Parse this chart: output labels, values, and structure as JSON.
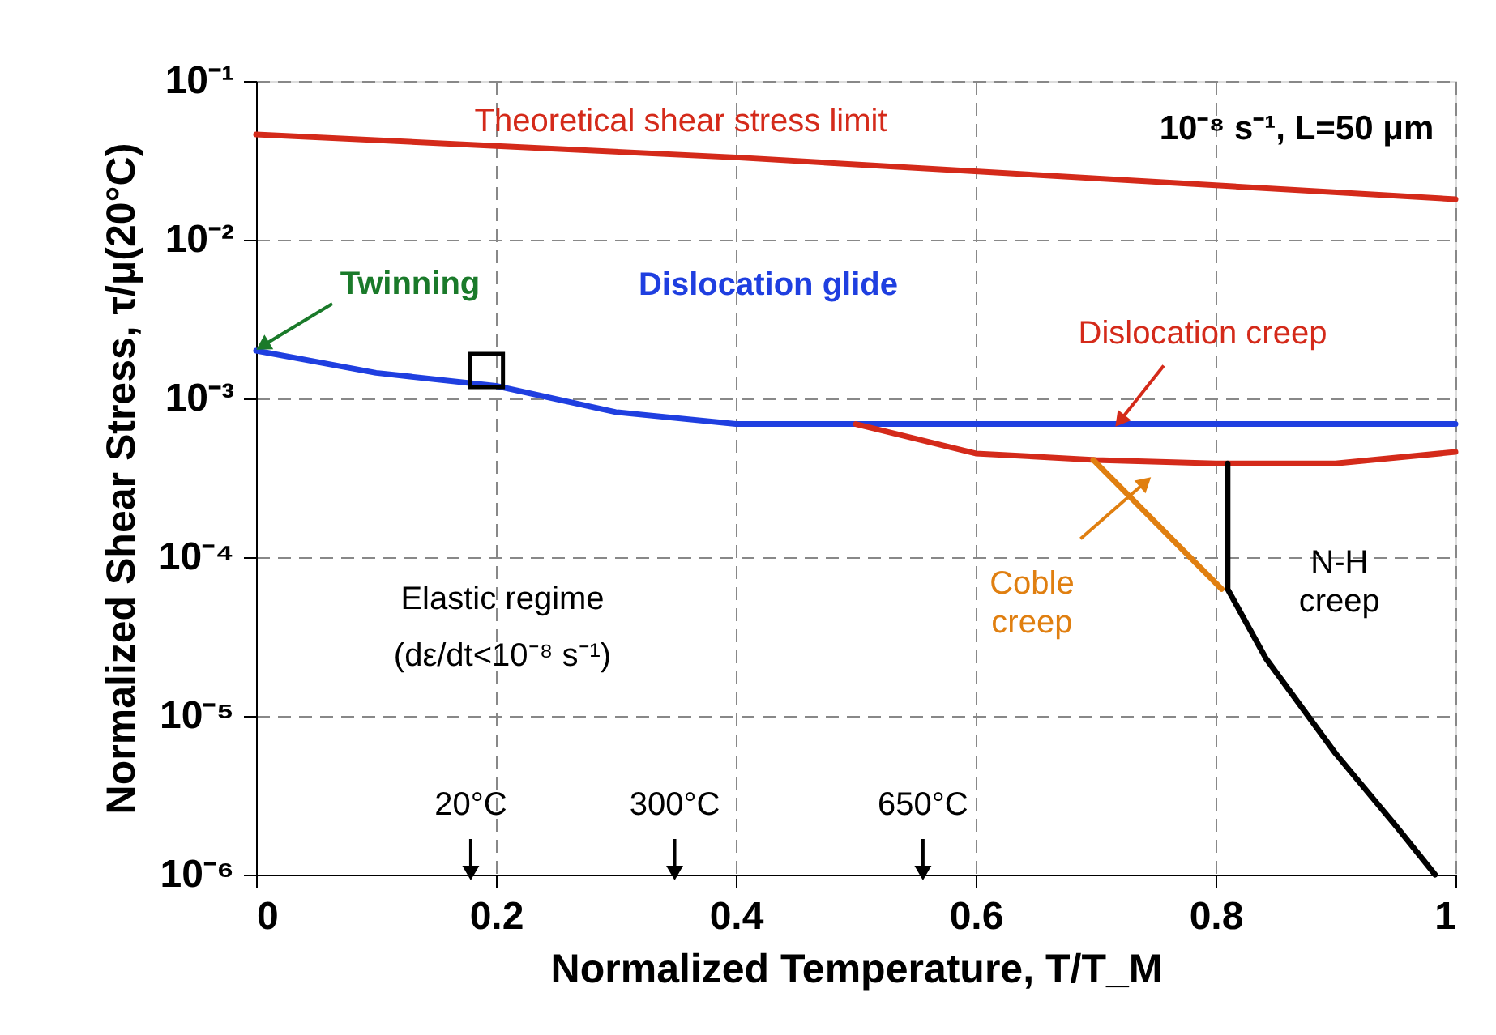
{
  "chart_data": {
    "type": "line",
    "xlabel": "Normalized Temperature, T/T_M",
    "ylabel": "Normalized Shear Stress, τ/μ(20°C)",
    "xlim": [
      0,
      1
    ],
    "xticks": [
      0,
      0.2,
      0.4,
      0.6,
      0.8,
      1
    ],
    "ylim": [
      1e-06,
      0.1
    ],
    "yticks": [
      {
        "value": 0.1,
        "label": "10⁻¹"
      },
      {
        "value": 0.01,
        "label": "10⁻²"
      },
      {
        "value": 0.001,
        "label": "10⁻³"
      },
      {
        "value": 0.0001,
        "label": "10⁻⁴"
      },
      {
        "value": 1e-05,
        "label": "10⁻⁵"
      },
      {
        "value": 1e-06,
        "label": "10⁻⁶"
      }
    ],
    "log": "y",
    "grid": true,
    "line_style": "solid",
    "series": [
      {
        "name": "Dislocation glide",
        "color": "#1f3fe0",
        "x": [
          0,
          0.1,
          0.2,
          0.3,
          0.4,
          1
        ],
        "values": [
          0.002,
          0.00145,
          0.0012,
          0.00082,
          0.00069,
          0.00069
        ]
      },
      {
        "name": "Theoretical shear stress limit",
        "color": "#d42a1a",
        "x": [
          0,
          0.4,
          1
        ],
        "values": [
          0.046,
          0.033,
          0.018
        ]
      },
      {
        "name": "Dislocation creep",
        "color": "#d42a1a",
        "x": [
          0.5,
          0.6,
          0.7,
          0.8,
          0.9,
          1
        ],
        "values": [
          0.00069,
          0.00045,
          0.00041,
          0.00039,
          0.00039,
          0.00046
        ]
      },
      {
        "name": "Coble creep",
        "color": "#e07f10",
        "x": [
          0.698,
          0.805
        ],
        "values": [
          0.00041,
          6.3e-05
        ]
      },
      {
        "name": "N-H creep",
        "color": "#000000",
        "x": [
          0.81,
          0.81,
          0.842,
          0.9,
          0.951,
          0.983
        ],
        "values": [
          0.00039,
          6.3e-05,
          2.3e-05,
          5.8e-06,
          2e-06,
          1e-06
        ]
      },
      {
        "type": "scatter",
        "marker": "square",
        "color": "#000000",
        "x": [
          0.192
        ],
        "values": [
          0.0015
        ]
      }
    ],
    "annotations": [
      {
        "text": "Twinning",
        "x": 0,
        "y": 0.002
      },
      "10⁻⁸ s⁻¹, L=50 μm",
      "Elastic regime",
      "(dε/dt<10⁻⁸ s⁻¹)",
      {
        "text": "20°C",
        "x": 0.179,
        "y": 1e-06
      },
      {
        "text": "300°C",
        "x": 0.349,
        "y": 1e-06
      },
      {
        "text": "650°C",
        "x": 0.556,
        "y": 1e-06
      }
    ]
  }
}
